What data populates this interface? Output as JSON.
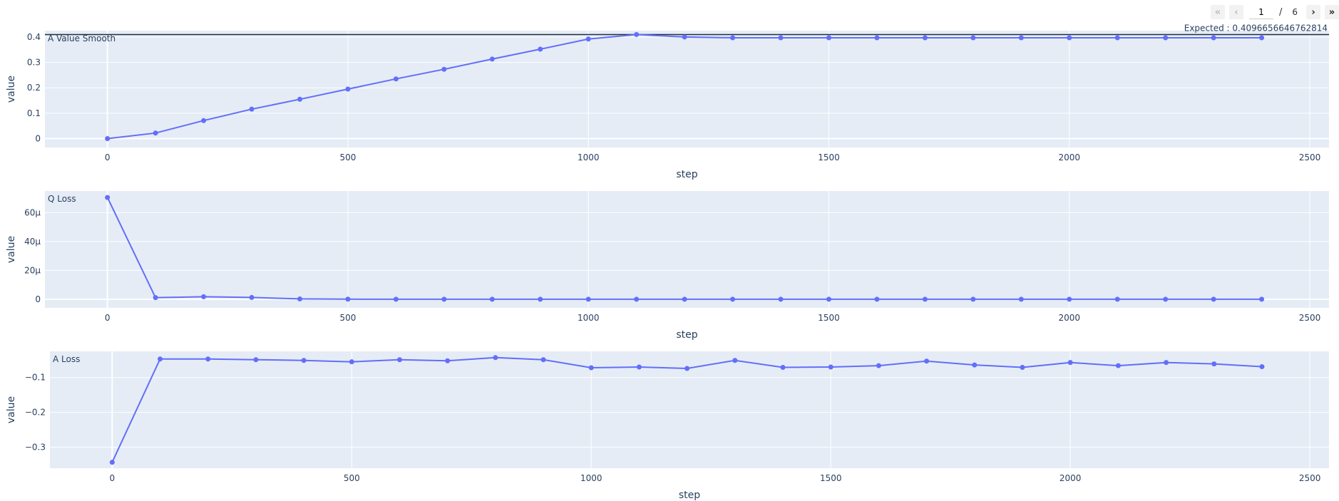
{
  "pager": {
    "current": "1",
    "separator": "/",
    "total": "6"
  },
  "chart_data": [
    {
      "type": "line",
      "title": "A Value Smooth",
      "xlabel": "step",
      "ylabel": "value",
      "x": [
        0,
        100,
        200,
        300,
        400,
        500,
        600,
        700,
        800,
        900,
        1000,
        1100,
        1200,
        1300,
        1400,
        1500,
        1600,
        1700,
        1800,
        1900,
        2000,
        2100,
        2200,
        2300,
        2400
      ],
      "y": [
        0.0,
        0.022,
        0.071,
        0.116,
        0.155,
        0.195,
        0.235,
        0.273,
        0.313,
        0.352,
        0.392,
        0.4097,
        0.4,
        0.397,
        0.397,
        0.397,
        0.397,
        0.397,
        0.397,
        0.397,
        0.397,
        0.397,
        0.397,
        0.397,
        0.397
      ],
      "xlim": [
        -130,
        2540
      ],
      "ylim": [
        -0.035,
        0.425
      ],
      "xticks": [
        {
          "v": 0,
          "t": "0"
        },
        {
          "v": 500,
          "t": "500"
        },
        {
          "v": 1000,
          "t": "1000"
        },
        {
          "v": 1500,
          "t": "1500"
        },
        {
          "v": 2000,
          "t": "2000"
        },
        {
          "v": 2500,
          "t": "2500"
        }
      ],
      "yticks": [
        {
          "v": 0,
          "t": "0"
        },
        {
          "v": 0.1,
          "t": "0.1"
        },
        {
          "v": 0.2,
          "t": "0.2"
        },
        {
          "v": 0.3,
          "t": "0.3"
        },
        {
          "v": 0.4,
          "t": "0.4"
        }
      ],
      "reference_line": {
        "value": 0.4096656646762814,
        "label": "Expected : 0.4096656646762814",
        "color": "#1f2d3d"
      },
      "line_color": "#636efa",
      "grid": true
    },
    {
      "type": "line",
      "title": "Q Loss",
      "xlabel": "step",
      "ylabel": "value",
      "x": [
        0,
        100,
        200,
        300,
        400,
        500,
        600,
        700,
        800,
        900,
        1000,
        1100,
        1200,
        1300,
        1400,
        1500,
        1600,
        1700,
        1800,
        1900,
        2000,
        2100,
        2200,
        2300,
        2400
      ],
      "y": [
        7.05e-05,
        1.1e-06,
        1.7e-06,
        1.2e-06,
        2e-07,
        5e-08,
        0.0,
        0.0,
        0.0,
        0.0,
        0.0,
        0.0,
        0.0,
        0.0,
        0.0,
        0.0,
        0.0,
        0.0,
        0.0,
        0.0,
        0.0,
        0.0,
        0.0,
        0.0,
        0.0
      ],
      "xlim": [
        -130,
        2540
      ],
      "ylim": [
        -6e-06,
        7.5e-05
      ],
      "xticks": [
        {
          "v": 0,
          "t": "0"
        },
        {
          "v": 500,
          "t": "500"
        },
        {
          "v": 1000,
          "t": "1000"
        },
        {
          "v": 1500,
          "t": "1500"
        },
        {
          "v": 2000,
          "t": "2000"
        },
        {
          "v": 2500,
          "t": "2500"
        }
      ],
      "yticks": [
        {
          "v": 0,
          "t": "0"
        },
        {
          "v": 2e-05,
          "t": "20μ"
        },
        {
          "v": 4e-05,
          "t": "40μ"
        },
        {
          "v": 6e-05,
          "t": "60μ"
        }
      ],
      "line_color": "#636efa",
      "grid": true
    },
    {
      "type": "line",
      "title": "A Loss",
      "xlabel": "step",
      "ylabel": "value",
      "x": [
        0,
        100,
        200,
        300,
        400,
        500,
        600,
        700,
        800,
        900,
        1000,
        1100,
        1200,
        1300,
        1400,
        1500,
        1600,
        1700,
        1800,
        1900,
        2000,
        2100,
        2200,
        2300,
        2400
      ],
      "y": [
        -0.343,
        -0.047,
        -0.047,
        -0.049,
        -0.051,
        -0.055,
        -0.049,
        -0.052,
        -0.043,
        -0.049,
        -0.072,
        -0.07,
        -0.074,
        -0.051,
        -0.071,
        -0.07,
        -0.066,
        -0.053,
        -0.064,
        -0.071,
        -0.057,
        -0.066,
        -0.057,
        -0.061,
        -0.069
      ],
      "xlim": [
        -130,
        2540
      ],
      "ylim": [
        -0.36,
        -0.025
      ],
      "xticks": [
        {
          "v": 0,
          "t": "0"
        },
        {
          "v": 500,
          "t": "500"
        },
        {
          "v": 1000,
          "t": "1000"
        },
        {
          "v": 1500,
          "t": "1500"
        },
        {
          "v": 2000,
          "t": "2000"
        },
        {
          "v": 2500,
          "t": "2500"
        }
      ],
      "yticks": [
        {
          "v": -0.1,
          "t": "−0.1"
        },
        {
          "v": -0.2,
          "t": "−0.2"
        },
        {
          "v": -0.3,
          "t": "−0.3"
        }
      ],
      "line_color": "#636efa",
      "grid": true
    }
  ]
}
